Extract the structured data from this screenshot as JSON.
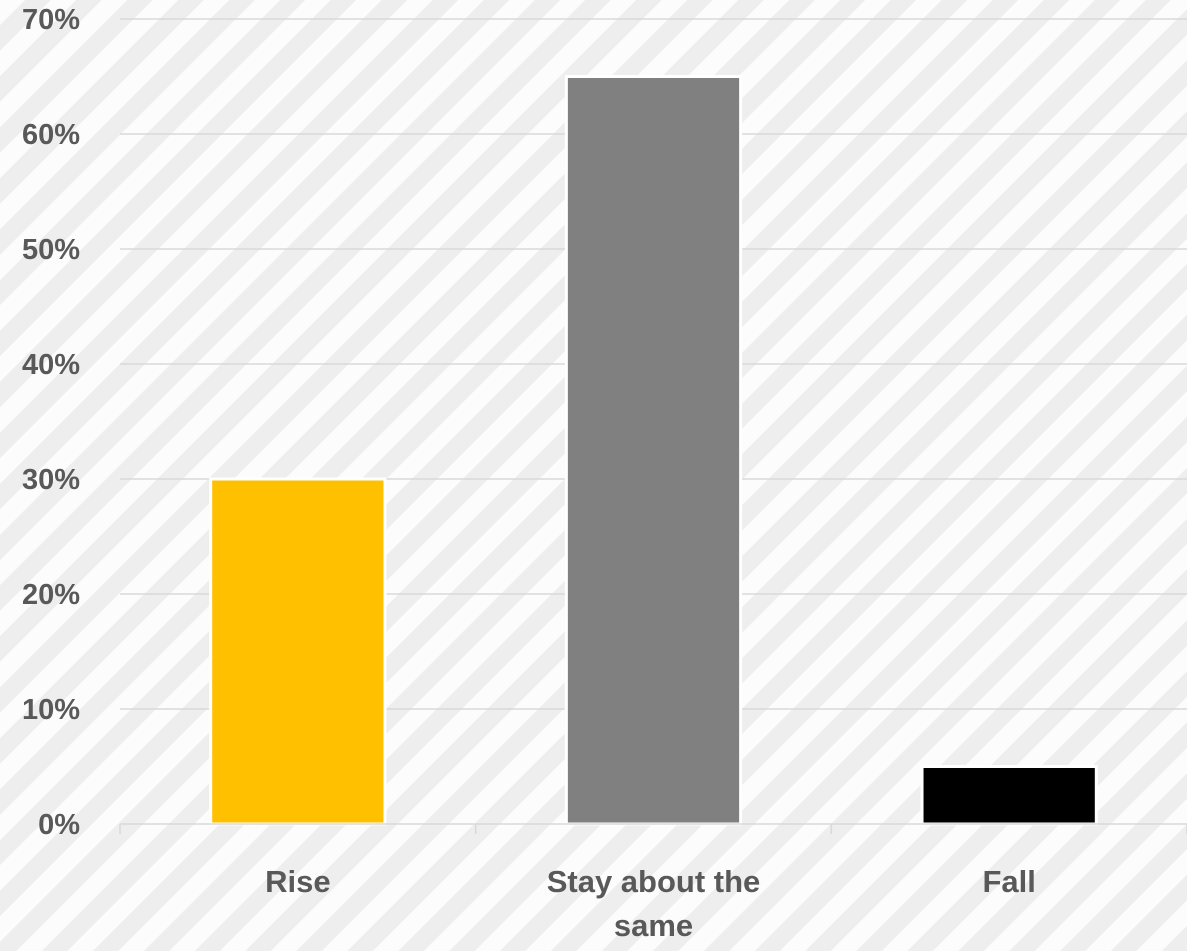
{
  "chart_data": {
    "type": "bar",
    "title": "",
    "xlabel": "",
    "ylabel": "",
    "categories": [
      "Rise",
      "Stay about the same",
      "Fall"
    ],
    "category_label_lines": [
      [
        "Rise"
      ],
      [
        "Stay about the",
        "same"
      ],
      [
        "Fall"
      ]
    ],
    "values": [
      30,
      65,
      5
    ],
    "bar_colors": [
      "#ffc000",
      "#808080",
      "#000000"
    ],
    "value_format": "percent",
    "ylim": [
      0,
      70
    ],
    "yticks": [
      0,
      10,
      20,
      30,
      40,
      50,
      60,
      70
    ],
    "ytick_labels": [
      "0%",
      "10%",
      "20%",
      "30%",
      "40%",
      "50%",
      "60%",
      "70%"
    ],
    "grid": true,
    "legend": "none"
  },
  "colors": {
    "gridline": "#d9d9d9",
    "axis_text": "#595959",
    "bar_outline": "#ffffff"
  }
}
